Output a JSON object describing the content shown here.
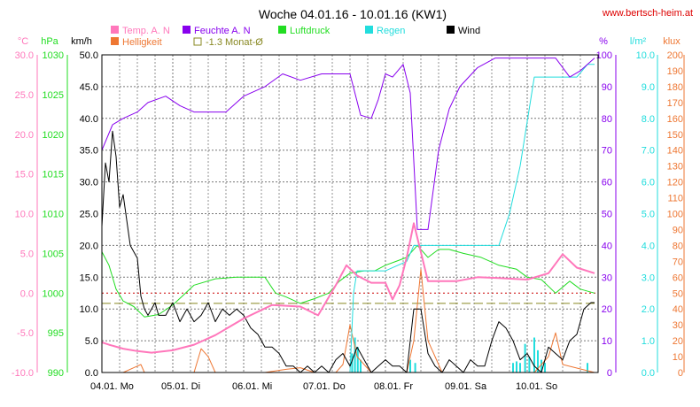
{
  "title": "Woche 04.01.16 - 10.01.16 (KW1)",
  "website": "www.bertsch-heim.at",
  "colors": {
    "temp": "#ff77bb",
    "humidity": "#8800ee",
    "pressure": "#22dd22",
    "rain": "#22dddd",
    "wind": "#000000",
    "brightness": "#ee7733",
    "avg": "#888822",
    "zero": "#cc0000",
    "grid": "#777777",
    "website": "#dd0000"
  },
  "legend": [
    {
      "label": "Temp. A. N",
      "color": "#ff77bb"
    },
    {
      "label": "Feuchte A. N",
      "color": "#8800ee"
    },
    {
      "label": "Luftdruck",
      "color": "#22dd22"
    },
    {
      "label": "Regen",
      "color": "#22dddd"
    },
    {
      "label": "Wind",
      "color": "#000000"
    },
    {
      "label": "Helligkeit",
      "color": "#ee7733"
    },
    {
      "label": "-1.3 Monat-Ø",
      "color": "#888822"
    }
  ],
  "chart_data": {
    "type": "line",
    "title": "Woche 04.01.16 - 10.01.16 (KW1)",
    "x_labels": [
      "04.01. Mo",
      "05.01. Di",
      "06.01. Mi",
      "07.01. Do",
      "08.01. Fr",
      "09.01. Sa",
      "10.01. So"
    ],
    "grid": true,
    "axes": {
      "temp": {
        "unit": "°C",
        "min": -10,
        "max": 30,
        "ticks": [
          "30.0",
          "25.0",
          "20.0",
          "15.0",
          "10.0",
          "5.0",
          "0.0",
          "-5.0",
          "-10.0"
        ]
      },
      "pressure": {
        "unit": "hPa",
        "min": 990,
        "max": 1030,
        "ticks": [
          "1030",
          "1025",
          "1020",
          "1015",
          "1010",
          "1005",
          "1000",
          "995",
          "990"
        ]
      },
      "wind": {
        "unit": "km/h",
        "min": 0,
        "max": 50,
        "ticks": [
          "50.0",
          "45.0",
          "40.0",
          "35.0",
          "30.0",
          "25.0",
          "20.0",
          "15.0",
          "10.0",
          "5.0",
          "0.0"
        ]
      },
      "humidity": {
        "unit": "%",
        "min": 0,
        "max": 100,
        "ticks": [
          "100",
          "90",
          "80",
          "70",
          "60",
          "50",
          "40",
          "30",
          "20",
          "10",
          "0"
        ]
      },
      "rain": {
        "unit": "l/m²",
        "min": 0,
        "max": 10,
        "ticks": [
          "10.0",
          "9.0",
          "8.0",
          "7.0",
          "6.0",
          "5.0",
          "4.0",
          "3.0",
          "2.0",
          "1.0",
          "0.0"
        ]
      },
      "brightness": {
        "unit": "klux",
        "min": 0,
        "max": 200,
        "ticks": [
          "200",
          "190",
          "180",
          "170",
          "160",
          "150",
          "140",
          "130",
          "120",
          "110",
          "100",
          "90",
          "80",
          "70",
          "60",
          "50",
          "40",
          "30",
          "20",
          "10",
          "0"
        ]
      }
    },
    "reference_lines": [
      {
        "name": "-1.3 Monat-Ø",
        "axis": "temp",
        "value": -1.3,
        "style": "dashed"
      },
      {
        "name": "0 °C",
        "axis": "temp",
        "value": 0,
        "style": "dotted"
      }
    ],
    "series": [
      {
        "name": "Temp. A. N",
        "axis": "temp",
        "x": [
          0,
          0.1,
          0.3,
          0.5,
          0.7,
          1.0,
          1.3,
          1.6,
          2.0,
          2.4,
          2.8,
          3.05,
          3.3,
          3.45,
          3.6,
          3.8,
          4.0,
          4.1,
          4.2,
          4.3,
          4.4,
          4.6,
          5.0,
          5.3,
          5.6,
          6.0,
          6.3,
          6.5,
          6.7,
          6.95
        ],
        "values": [
          -6.2,
          -6.5,
          -7.0,
          -7.3,
          -7.5,
          -7.2,
          -6.5,
          -5.3,
          -3.2,
          -1.5,
          -1.7,
          -2.8,
          1.0,
          3.5,
          2.2,
          1.3,
          1.3,
          -0.8,
          1.0,
          4.5,
          8.8,
          1.5,
          1.5,
          2.0,
          1.9,
          1.7,
          2.5,
          4.9,
          3.2,
          2.5
        ]
      },
      {
        "name": "Feuchte A. N",
        "axis": "humidity",
        "x": [
          0,
          0.15,
          0.3,
          0.5,
          0.65,
          0.9,
          1.1,
          1.3,
          1.55,
          1.75,
          2.0,
          2.3,
          2.55,
          2.8,
          3.1,
          3.3,
          3.5,
          3.65,
          3.8,
          3.9,
          4.0,
          4.1,
          4.25,
          4.35,
          4.45,
          4.6,
          4.75,
          4.9,
          5.05,
          5.3,
          5.55,
          5.85,
          6.05,
          6.4,
          6.6,
          6.75,
          6.95
        ],
        "values": [
          70,
          78,
          80,
          82,
          85,
          87,
          84,
          82,
          82,
          82,
          87,
          90,
          94,
          92,
          94,
          94,
          94,
          81,
          80,
          86,
          94,
          93,
          97,
          88,
          45,
          45,
          70,
          83,
          90,
          96,
          99,
          99,
          99,
          99,
          93,
          95,
          99
        ]
      },
      {
        "name": "Luftdruck",
        "axis": "pressure",
        "x": [
          0,
          0.1,
          0.2,
          0.3,
          0.45,
          0.6,
          0.8,
          1.0,
          1.3,
          1.6,
          1.9,
          2.1,
          2.3,
          2.45,
          2.6,
          2.8,
          3.0,
          3.2,
          3.35,
          3.5,
          3.7,
          3.85,
          4.0,
          4.15,
          4.3,
          4.45,
          4.6,
          4.75,
          4.9,
          5.1,
          5.35,
          5.6,
          5.85,
          6.0,
          6.2,
          6.4,
          6.6,
          6.75,
          6.95
        ],
        "values": [
          1005.2,
          1003.5,
          1000.5,
          999,
          998.3,
          997,
          997.3,
          998.5,
          1001,
          1001.8,
          1002,
          1002,
          1002,
          1000,
          999.5,
          998.7,
          999.3,
          1000,
          1001.5,
          1002.5,
          1002.8,
          1002.8,
          1003.5,
          1004,
          1004.5,
          1006,
          1004.5,
          1005.5,
          1005.5,
          1005,
          1004.5,
          1003.5,
          1003,
          1002,
          1001.7,
          1000,
          1001.5,
          1000.5,
          1000
        ]
      },
      {
        "name": "Regen",
        "axis": "rain",
        "x": [
          0,
          3.5,
          3.55,
          3.6,
          4.0,
          4.3,
          4.4,
          4.5,
          5.0,
          5.6,
          5.75,
          5.9,
          6.1,
          6.25,
          6.5,
          6.7,
          6.85,
          6.95
        ],
        "values": [
          0,
          0,
          2.5,
          3.2,
          3.2,
          3.5,
          4.0,
          4.0,
          4.0,
          4.0,
          5.0,
          6.5,
          9.3,
          9.3,
          9.3,
          9.3,
          9.7,
          9.7
        ]
      },
      {
        "name": "Wind",
        "axis": "wind",
        "x": [
          0,
          0.05,
          0.1,
          0.15,
          0.2,
          0.25,
          0.3,
          0.35,
          0.4,
          0.45,
          0.5,
          0.55,
          0.6,
          0.65,
          0.7,
          0.75,
          0.8,
          0.9,
          1.0,
          1.1,
          1.2,
          1.3,
          1.4,
          1.5,
          1.6,
          1.7,
          1.8,
          1.9,
          2.0,
          2.1,
          2.2,
          2.3,
          2.4,
          2.5,
          2.6,
          2.7,
          2.8,
          2.9,
          3.0,
          3.1,
          3.2,
          3.3,
          3.4,
          3.5,
          3.6,
          3.7,
          3.8,
          3.9,
          4.0,
          4.1,
          4.2,
          4.3,
          4.4,
          4.5,
          4.6,
          4.7,
          4.8,
          4.9,
          5.0,
          5.1,
          5.2,
          5.3,
          5.4,
          5.5,
          5.6,
          5.7,
          5.8,
          5.9,
          6.0,
          6.1,
          6.2,
          6.3,
          6.4,
          6.5,
          6.6,
          6.7,
          6.8,
          6.9,
          6.95
        ],
        "values": [
          23,
          33,
          30,
          38,
          34,
          26,
          28,
          24,
          20,
          19,
          18,
          12,
          10,
          9,
          10,
          11,
          9,
          9,
          11,
          8,
          10,
          8,
          9,
          11,
          8,
          10,
          9,
          10,
          9,
          7,
          6,
          4,
          4,
          3,
          1,
          1,
          0,
          1,
          0,
          1,
          0,
          2,
          3,
          1,
          4,
          2,
          0,
          1,
          2,
          1,
          1,
          0,
          10,
          10,
          3,
          1,
          0,
          2,
          1,
          0,
          2,
          1,
          1,
          5,
          8,
          7,
          5,
          2,
          3,
          1,
          0,
          4,
          3,
          2,
          5,
          6,
          10,
          11,
          11
        ]
      },
      {
        "name": "Helligkeit",
        "axis": "brightness",
        "x": [
          0,
          0.3,
          0.45,
          0.55,
          0.6,
          1.0,
          1.3,
          1.4,
          1.5,
          1.6,
          1.8,
          2.0,
          2.3,
          2.6,
          2.8,
          3.0,
          3.3,
          3.4,
          3.5,
          3.6,
          3.8,
          4.0,
          4.3,
          4.4,
          4.5,
          4.6,
          4.8,
          5.0,
          5.3,
          5.6,
          5.8,
          6.0,
          6.1,
          6.2,
          6.3,
          6.4,
          6.5,
          6.95
        ],
        "values": [
          0,
          0,
          3,
          5,
          0,
          0,
          0,
          15,
          10,
          0,
          0,
          0,
          0,
          2,
          3,
          0,
          0,
          5,
          30,
          10,
          0,
          0,
          0,
          20,
          65,
          20,
          0,
          0,
          0,
          0,
          0,
          0,
          0,
          5,
          10,
          25,
          5,
          0
        ]
      }
    ]
  }
}
